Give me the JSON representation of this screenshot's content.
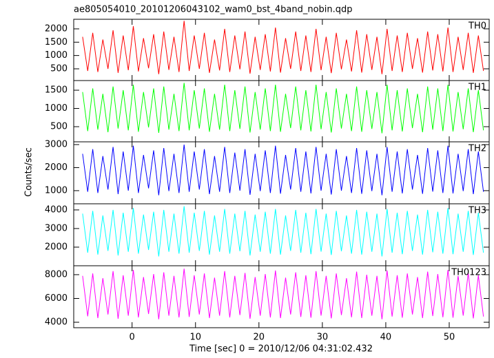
{
  "chart_data": [
    {
      "type": "line",
      "title": "ae805054010_20101206043102_wam0_bst_4band_nobin.qdp",
      "xlim": [
        -9.2,
        56.3
      ],
      "ylim": [
        60,
        2360
      ],
      "yticks": [
        500,
        1000,
        1500,
        2000
      ],
      "x": [
        -7.8,
        -7,
        -6.2,
        -5.4,
        -4.6,
        -3.8,
        -3,
        -2.2,
        -1.4,
        -0.6,
        0.2,
        1,
        1.8,
        2.6,
        3.4,
        4.2,
        5,
        5.8,
        6.6,
        7.4,
        8.2,
        9,
        9.8,
        10.6,
        11.4,
        12.2,
        13,
        13.8,
        14.6,
        15.4,
        16.2,
        17,
        17.8,
        18.6,
        19.4,
        20.2,
        21,
        21.8,
        22.6,
        23.4,
        24.2,
        25,
        25.8,
        26.6,
        27.4,
        28.2,
        29,
        29.8,
        30.6,
        31.4,
        32.2,
        33,
        33.8,
        34.6,
        35.4,
        36.2,
        37,
        37.8,
        38.6,
        39.4,
        40.2,
        41,
        41.8,
        42.6,
        43.4,
        44.2,
        45,
        45.8,
        46.6,
        47.4,
        48.2,
        49,
        49.8,
        50.6,
        51.4,
        52.2,
        53,
        53.8,
        54.6,
        55.4
      ],
      "series": [
        {
          "name": "TH0",
          "color": "#ff0000",
          "values": [
            1700,
            420,
            1850,
            380,
            1600,
            500,
            1950,
            350,
            1750,
            450,
            2100,
            400,
            1650,
            520,
            1800,
            300,
            1900,
            460,
            1700,
            380,
            2300,
            420,
            1750,
            500,
            1850,
            350,
            1600,
            440,
            2000,
            380,
            1750,
            480,
            1900,
            320,
            1700,
            460,
            1800,
            400,
            2050,
            360,
            1650,
            500,
            1900,
            420,
            1750,
            380,
            2000,
            450,
            1700,
            340,
            1850,
            480,
            1600,
            400,
            1950,
            360,
            1800,
            460,
            1700,
            300,
            2000,
            420,
            1750,
            380,
            1850,
            500,
            1650,
            360,
            1900,
            440,
            1800,
            400,
            2050,
            380,
            1700,
            460,
            1850,
            350,
            1750,
            420
          ]
        }
      ]
    },
    {
      "type": "line",
      "xlim": [
        -9.2,
        56.3
      ],
      "ylim": [
        85,
        1765
      ],
      "yticks": [
        500,
        1000,
        1500
      ],
      "x": [
        -7.8,
        -7,
        -6.2,
        -5.4,
        -4.6,
        -3.8,
        -3,
        -2.2,
        -1.4,
        -0.6,
        0.2,
        1,
        1.8,
        2.6,
        3.4,
        4.2,
        5,
        5.8,
        6.6,
        7.4,
        8.2,
        9,
        9.8,
        10.6,
        11.4,
        12.2,
        13,
        13.8,
        14.6,
        15.4,
        16.2,
        17,
        17.8,
        18.6,
        19.4,
        20.2,
        21,
        21.8,
        22.6,
        23.4,
        24.2,
        25,
        25.8,
        26.6,
        27.4,
        28.2,
        29,
        29.8,
        30.6,
        31.4,
        32.2,
        33,
        33.8,
        34.6,
        35.4,
        36.2,
        37,
        37.8,
        38.6,
        39.4,
        40.2,
        41,
        41.8,
        42.6,
        43.4,
        44.2,
        45,
        45.8,
        46.6,
        47.4,
        48.2,
        49,
        49.8,
        50.6,
        51.4,
        52.2,
        53,
        53.8,
        54.6,
        55.4
      ],
      "series": [
        {
          "name": "TH1",
          "color": "#00ff00",
          "values": [
            1450,
            380,
            1550,
            420,
            1400,
            350,
            1600,
            450,
            1500,
            400,
            1650,
            360,
            1450,
            480,
            1550,
            330,
            1600,
            420,
            1400,
            380,
            1700,
            400,
            1500,
            450,
            1550,
            360,
            1400,
            420,
            1650,
            380,
            1500,
            440,
            1600,
            340,
            1450,
            420,
            1550,
            380,
            1650,
            360,
            1400,
            460,
            1600,
            400,
            1500,
            370,
            1650,
            430,
            1450,
            340,
            1550,
            450,
            1400,
            380,
            1600,
            360,
            1500,
            440,
            1450,
            320,
            1650,
            400,
            1500,
            370,
            1550,
            460,
            1400,
            350,
            1600,
            420,
            1550,
            380,
            1650,
            370,
            1450,
            430,
            1550,
            350,
            1500,
            400
          ]
        }
      ]
    },
    {
      "type": "line",
      "xlim": [
        -9.2,
        56.3
      ],
      "ylim": [
        430,
        3120
      ],
      "yticks": [
        1000,
        2000,
        3000
      ],
      "ylabel": "Counts/sec",
      "x": [
        -7.8,
        -7,
        -6.2,
        -5.4,
        -4.6,
        -3.8,
        -3,
        -2.2,
        -1.4,
        -0.6,
        0.2,
        1,
        1.8,
        2.6,
        3.4,
        4.2,
        5,
        5.8,
        6.6,
        7.4,
        8.2,
        9,
        9.8,
        10.6,
        11.4,
        12.2,
        13,
        13.8,
        14.6,
        15.4,
        16.2,
        17,
        17.8,
        18.6,
        19.4,
        20.2,
        21,
        21.8,
        22.6,
        23.4,
        24.2,
        25,
        25.8,
        26.6,
        27.4,
        28.2,
        29,
        29.8,
        30.6,
        31.4,
        32.2,
        33,
        33.8,
        34.6,
        35.4,
        36.2,
        37,
        37.8,
        38.6,
        39.4,
        40.2,
        41,
        41.8,
        42.6,
        43.4,
        44.2,
        45,
        45.8,
        46.6,
        47.4,
        48.2,
        49,
        49.8,
        50.6,
        51.4,
        52.2,
        53,
        53.8,
        54.6,
        55.4
      ],
      "series": [
        {
          "name": "TH2",
          "color": "#0000ff",
          "values": [
            2600,
            950,
            2800,
            900,
            2500,
            1050,
            2900,
            850,
            2700,
            1000,
            2950,
            900,
            2550,
            1100,
            2750,
            800,
            2850,
            980,
            2600,
            900,
            3000,
            950,
            2700,
            1050,
            2800,
            850,
            2500,
            950,
            2900,
            900,
            2650,
            1000,
            2800,
            820,
            2600,
            980,
            2750,
            900,
            2950,
            870,
            2550,
            1050,
            2850,
            950,
            2700,
            880,
            2900,
            1000,
            2600,
            830,
            2800,
            1000,
            2500,
            900,
            2850,
            860,
            2750,
            980,
            2600,
            800,
            2900,
            950,
            2700,
            880,
            2800,
            1050,
            2550,
            860,
            2850,
            960,
            2750,
            900,
            2950,
            880,
            2600,
            980,
            2800,
            850,
            2700,
            950
          ]
        }
      ]
    },
    {
      "type": "line",
      "xlim": [
        -9.2,
        56.3
      ],
      "ylim": [
        1000,
        4330
      ],
      "yticks": [
        2000,
        3000,
        4000
      ],
      "x": [
        -7.8,
        -7,
        -6.2,
        -5.4,
        -4.6,
        -3.8,
        -3,
        -2.2,
        -1.4,
        -0.6,
        0.2,
        1,
        1.8,
        2.6,
        3.4,
        4.2,
        5,
        5.8,
        6.6,
        7.4,
        8.2,
        9,
        9.8,
        10.6,
        11.4,
        12.2,
        13,
        13.8,
        14.6,
        15.4,
        16.2,
        17,
        17.8,
        18.6,
        19.4,
        20.2,
        21,
        21.8,
        22.6,
        23.4,
        24.2,
        25,
        25.8,
        26.6,
        27.4,
        28.2,
        29,
        29.8,
        30.6,
        31.4,
        32.2,
        33,
        33.8,
        34.6,
        35.4,
        36.2,
        37,
        37.8,
        38.6,
        39.4,
        40.2,
        41,
        41.8,
        42.6,
        43.4,
        44.2,
        45,
        45.8,
        46.6,
        47.4,
        48.2,
        49,
        49.8,
        50.6,
        51.4,
        52.2,
        53,
        53.8,
        54.6,
        55.4
      ],
      "series": [
        {
          "name": "TH3",
          "color": "#00ffff",
          "values": [
            3800,
            1700,
            3950,
            1600,
            3700,
            1800,
            4000,
            1550,
            3850,
            1750,
            4100,
            1650,
            3750,
            1850,
            3900,
            1500,
            4000,
            1750,
            3800,
            1650,
            4200,
            1700,
            3850,
            1800,
            3950,
            1600,
            3700,
            1750,
            4050,
            1650,
            3800,
            1780,
            3950,
            1550,
            3750,
            1750,
            3900,
            1650,
            4050,
            1600,
            3700,
            1800,
            4000,
            1700,
            3850,
            1620,
            4050,
            1760,
            3800,
            1580,
            3950,
            1780,
            3700,
            1650,
            4000,
            1600,
            3900,
            1750,
            3800,
            1500,
            4050,
            1700,
            3850,
            1620,
            3950,
            1800,
            3750,
            1600,
            4000,
            1720,
            3900,
            1650,
            4100,
            1620,
            3800,
            1750,
            3950,
            1580,
            3850,
            1700
          ]
        }
      ]
    },
    {
      "type": "line",
      "xlim": [
        -9.2,
        56.3
      ],
      "ylim": [
        3540,
        8750
      ],
      "yticks": [
        4000,
        6000,
        8000
      ],
      "xticks": [
        0,
        10,
        20,
        30,
        40,
        50
      ],
      "xlabel": "Time [sec] 0 = 2010/12/06 04:31:02.432",
      "x": [
        -7.8,
        -7,
        -6.2,
        -5.4,
        -4.6,
        -3.8,
        -3,
        -2.2,
        -1.4,
        -0.6,
        0.2,
        1,
        1.8,
        2.6,
        3.4,
        4.2,
        5,
        5.8,
        6.6,
        7.4,
        8.2,
        9,
        9.8,
        10.6,
        11.4,
        12.2,
        13,
        13.8,
        14.6,
        15.4,
        16.2,
        17,
        17.8,
        18.6,
        19.4,
        20.2,
        21,
        21.8,
        22.6,
        23.4,
        24.2,
        25,
        25.8,
        26.6,
        27.4,
        28.2,
        29,
        29.8,
        30.6,
        31.4,
        32.2,
        33,
        33.8,
        34.6,
        35.4,
        36.2,
        37,
        37.8,
        38.6,
        39.4,
        40.2,
        41,
        41.8,
        42.6,
        43.4,
        44.2,
        45,
        45.8,
        46.6,
        47.4,
        48.2,
        49,
        49.8,
        50.6,
        51.4,
        52.2,
        53,
        53.8,
        54.6,
        55.4
      ],
      "series": [
        {
          "name": "TH0123",
          "color": "#ff00ff",
          "values": [
            7900,
            4500,
            8100,
            4350,
            7700,
            4650,
            8300,
            4300,
            7950,
            4550,
            8400,
            4400,
            7800,
            4700,
            8050,
            4250,
            8200,
            4550,
            7900,
            4400,
            8500,
            4450,
            7950,
            4650,
            8100,
            4350,
            7750,
            4550,
            8300,
            4400,
            7900,
            4600,
            8150,
            4300,
            7800,
            4550,
            8050,
            4400,
            8350,
            4350,
            7750,
            4650,
            8200,
            4450,
            7950,
            4380,
            8300,
            4560,
            7900,
            4320,
            8100,
            4600,
            7700,
            4420,
            8250,
            4350,
            8000,
            4550,
            7900,
            4250,
            8350,
            4480,
            7950,
            4380,
            8100,
            4650,
            7800,
            4350,
            8250,
            4520,
            8050,
            4420,
            8400,
            4380,
            7900,
            4560,
            8150,
            4330,
            7950,
            4480
          ]
        }
      ]
    }
  ]
}
